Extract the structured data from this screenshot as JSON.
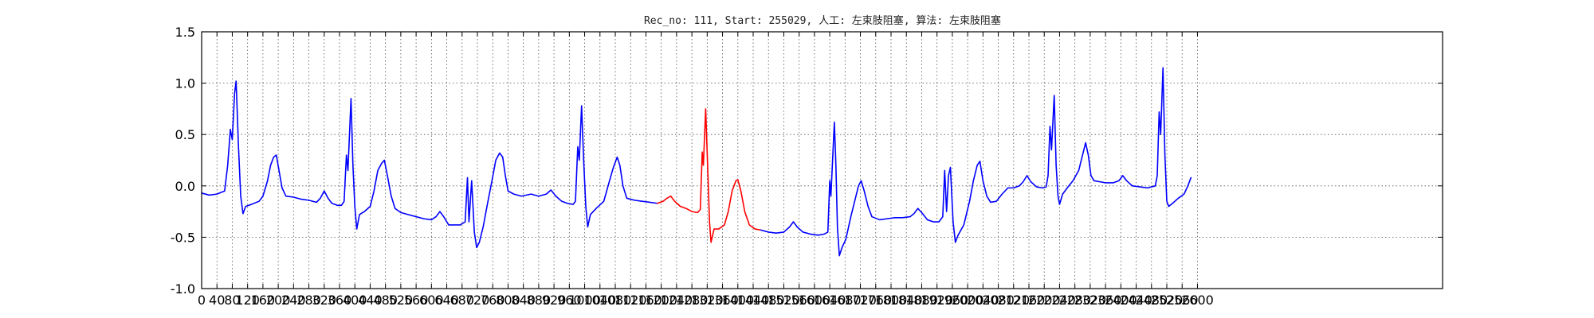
{
  "chart_data": {
    "type": "line",
    "title": "Rec_no: 111, Start: 255029, 人工: 左束肢阻塞, 算法: 左束肢阻塞",
    "xlabel": "",
    "ylabel": "",
    "xlim": [
      0,
      3240
    ],
    "ylim": [
      -1.0,
      1.5
    ],
    "grid": true,
    "y_ticks": [
      "-1.0",
      "-0.5",
      "0.0",
      "0.5",
      "1.0",
      "1.5"
    ],
    "x_ticks": [
      "0",
      "40",
      "80",
      "120",
      "160",
      "200",
      "240",
      "280",
      "320",
      "360",
      "400",
      "440",
      "480",
      "520",
      "560",
      "600",
      "640",
      "680",
      "720",
      "760",
      "800",
      "840",
      "880",
      "920",
      "960",
      "1000",
      "1040",
      "1080",
      "1120",
      "1160",
      "1200",
      "1240",
      "1280",
      "1320",
      "1360",
      "1400",
      "1440",
      "1480",
      "1520",
      "1560",
      "1600",
      "1640",
      "1680",
      "1720",
      "1760",
      "1800",
      "1840",
      "1880",
      "1920",
      "1960",
      "2000",
      "2040",
      "2080",
      "2120",
      "2160",
      "2200",
      "2240",
      "2280",
      "2320",
      "2360",
      "2400",
      "2440",
      "2480",
      "2520",
      "2560",
      "2600"
    ],
    "series": [
      {
        "color": "#0000ff",
        "points": [
          [
            0,
            -0.07
          ],
          [
            20,
            -0.09
          ],
          [
            40,
            -0.08
          ],
          [
            60,
            -0.05
          ],
          [
            68,
            0.2
          ],
          [
            75,
            0.55
          ],
          [
            80,
            0.45
          ],
          [
            86,
            0.9
          ],
          [
            90,
            1.02
          ],
          [
            96,
            0.4
          ],
          [
            102,
            -0.1
          ],
          [
            108,
            -0.27
          ],
          [
            115,
            -0.2
          ],
          [
            130,
            -0.18
          ],
          [
            150,
            -0.15
          ],
          [
            160,
            -0.1
          ],
          [
            172,
            0.05
          ],
          [
            180,
            0.2
          ],
          [
            188,
            0.28
          ],
          [
            195,
            0.3
          ],
          [
            202,
            0.15
          ],
          [
            210,
            -0.02
          ],
          [
            220,
            -0.1
          ],
          [
            240,
            -0.11
          ],
          [
            260,
            -0.13
          ],
          [
            280,
            -0.14
          ],
          [
            300,
            -0.16
          ],
          [
            310,
            -0.12
          ],
          [
            320,
            -0.05
          ],
          [
            330,
            -0.12
          ],
          [
            340,
            -0.17
          ],
          [
            355,
            -0.19
          ],
          [
            365,
            -0.19
          ],
          [
            372,
            -0.15
          ],
          [
            378,
            0.3
          ],
          [
            382,
            0.15
          ],
          [
            390,
            0.85
          ],
          [
            395,
            0.2
          ],
          [
            400,
            -0.2
          ],
          [
            405,
            -0.42
          ],
          [
            412,
            -0.28
          ],
          [
            425,
            -0.25
          ],
          [
            440,
            -0.2
          ],
          [
            450,
            -0.05
          ],
          [
            460,
            0.15
          ],
          [
            470,
            0.22
          ],
          [
            477,
            0.25
          ],
          [
            485,
            0.1
          ],
          [
            495,
            -0.1
          ],
          [
            505,
            -0.22
          ],
          [
            520,
            -0.26
          ],
          [
            540,
            -0.28
          ],
          [
            560,
            -0.3
          ],
          [
            580,
            -0.32
          ],
          [
            600,
            -0.33
          ],
          [
            612,
            -0.3
          ],
          [
            622,
            -0.25
          ],
          [
            632,
            -0.3
          ],
          [
            645,
            -0.38
          ],
          [
            660,
            -0.38
          ],
          [
            675,
            -0.38
          ],
          [
            688,
            -0.35
          ],
          [
            694,
            0.08
          ],
          [
            698,
            -0.35
          ],
          [
            705,
            0.05
          ],
          [
            712,
            -0.45
          ],
          [
            718,
            -0.6
          ],
          [
            725,
            -0.55
          ],
          [
            735,
            -0.4
          ],
          [
            745,
            -0.2
          ],
          [
            758,
            0.05
          ],
          [
            768,
            0.25
          ],
          [
            778,
            0.32
          ],
          [
            786,
            0.28
          ],
          [
            793,
            0.1
          ],
          [
            800,
            -0.05
          ],
          [
            815,
            -0.08
          ],
          [
            835,
            -0.1
          ],
          [
            860,
            -0.08
          ],
          [
            880,
            -0.1
          ],
          [
            900,
            -0.08
          ],
          [
            912,
            -0.04
          ],
          [
            925,
            -0.1
          ],
          [
            940,
            -0.15
          ],
          [
            955,
            -0.17
          ],
          [
            970,
            -0.18
          ],
          [
            976,
            -0.15
          ],
          [
            982,
            0.38
          ],
          [
            986,
            0.25
          ],
          [
            992,
            0.78
          ],
          [
            998,
            0.2
          ],
          [
            1003,
            -0.2
          ],
          [
            1008,
            -0.4
          ],
          [
            1015,
            -0.28
          ],
          [
            1030,
            -0.22
          ],
          [
            1050,
            -0.15
          ],
          [
            1065,
            0.05
          ],
          [
            1075,
            0.18
          ],
          [
            1085,
            0.28
          ],
          [
            1092,
            0.2
          ],
          [
            1100,
            0.0
          ],
          [
            1110,
            -0.12
          ],
          [
            1130,
            -0.14
          ],
          [
            1150,
            -0.15
          ],
          [
            1170,
            -0.16
          ],
          [
            1190,
            -0.17
          ]
        ]
      },
      {
        "color": "#ff0000",
        "points": [
          [
            1190,
            -0.17
          ],
          [
            1205,
            -0.15
          ],
          [
            1215,
            -0.12
          ],
          [
            1225,
            -0.1
          ],
          [
            1235,
            -0.15
          ],
          [
            1250,
            -0.2
          ],
          [
            1265,
            -0.22
          ],
          [
            1280,
            -0.25
          ],
          [
            1295,
            -0.26
          ],
          [
            1302,
            -0.23
          ],
          [
            1307,
            0.33
          ],
          [
            1310,
            0.2
          ],
          [
            1316,
            0.75
          ],
          [
            1322,
            0.1
          ],
          [
            1326,
            -0.35
          ],
          [
            1330,
            -0.55
          ],
          [
            1338,
            -0.42
          ],
          [
            1350,
            -0.42
          ],
          [
            1365,
            -0.38
          ],
          [
            1375,
            -0.25
          ],
          [
            1385,
            -0.05
          ],
          [
            1395,
            0.05
          ],
          [
            1400,
            0.06
          ],
          [
            1408,
            -0.05
          ],
          [
            1418,
            -0.25
          ],
          [
            1430,
            -0.38
          ],
          [
            1445,
            -0.42
          ],
          [
            1460,
            -0.43
          ]
        ]
      },
      {
        "color": "#0000ff",
        "points": [
          [
            1460,
            -0.43
          ],
          [
            1480,
            -0.45
          ],
          [
            1500,
            -0.46
          ],
          [
            1520,
            -0.45
          ],
          [
            1535,
            -0.4
          ],
          [
            1545,
            -0.35
          ],
          [
            1555,
            -0.4
          ],
          [
            1570,
            -0.45
          ],
          [
            1590,
            -0.47
          ],
          [
            1610,
            -0.48
          ],
          [
            1625,
            -0.47
          ],
          [
            1635,
            -0.45
          ],
          [
            1640,
            0.05
          ],
          [
            1643,
            -0.1
          ],
          [
            1652,
            0.62
          ],
          [
            1656,
            0.2
          ],
          [
            1660,
            -0.4
          ],
          [
            1665,
            -0.68
          ],
          [
            1672,
            -0.6
          ],
          [
            1682,
            -0.52
          ],
          [
            1695,
            -0.3
          ],
          [
            1705,
            -0.15
          ],
          [
            1715,
            0.0
          ],
          [
            1722,
            0.05
          ],
          [
            1730,
            -0.05
          ],
          [
            1740,
            -0.2
          ],
          [
            1750,
            -0.3
          ],
          [
            1770,
            -0.33
          ],
          [
            1790,
            -0.32
          ],
          [
            1810,
            -0.31
          ],
          [
            1830,
            -0.31
          ],
          [
            1850,
            -0.3
          ],
          [
            1860,
            -0.27
          ],
          [
            1870,
            -0.22
          ],
          [
            1880,
            -0.26
          ],
          [
            1895,
            -0.33
          ],
          [
            1910,
            -0.35
          ],
          [
            1925,
            -0.35
          ],
          [
            1935,
            -0.3
          ],
          [
            1940,
            0.15
          ],
          [
            1945,
            -0.25
          ],
          [
            1950,
            0.1
          ],
          [
            1955,
            0.18
          ],
          [
            1962,
            -0.35
          ],
          [
            1968,
            -0.55
          ],
          [
            1975,
            -0.48
          ],
          [
            1990,
            -0.38
          ],
          [
            2005,
            -0.15
          ],
          [
            2015,
            0.05
          ],
          [
            2025,
            0.2
          ],
          [
            2032,
            0.24
          ],
          [
            2040,
            0.05
          ],
          [
            2050,
            -0.1
          ],
          [
            2060,
            -0.16
          ],
          [
            2075,
            -0.15
          ],
          [
            2090,
            -0.08
          ],
          [
            2105,
            -0.02
          ],
          [
            2120,
            -0.02
          ],
          [
            2135,
            0.0
          ],
          [
            2145,
            0.04
          ],
          [
            2155,
            0.1
          ],
          [
            2165,
            0.04
          ],
          [
            2180,
            -0.01
          ],
          [
            2195,
            -0.02
          ],
          [
            2205,
            -0.01
          ],
          [
            2210,
            0.1
          ],
          [
            2215,
            0.58
          ],
          [
            2219,
            0.35
          ],
          [
            2226,
            0.88
          ],
          [
            2231,
            0.2
          ],
          [
            2236,
            -0.1
          ],
          [
            2240,
            -0.18
          ],
          [
            2248,
            -0.08
          ],
          [
            2260,
            -0.02
          ],
          [
            2275,
            0.05
          ],
          [
            2290,
            0.15
          ],
          [
            2300,
            0.3
          ],
          [
            2308,
            0.42
          ],
          [
            2315,
            0.3
          ],
          [
            2322,
            0.1
          ],
          [
            2330,
            0.05
          ],
          [
            2345,
            0.04
          ],
          [
            2360,
            0.03
          ],
          [
            2380,
            0.03
          ],
          [
            2395,
            0.05
          ],
          [
            2405,
            0.1
          ],
          [
            2415,
            0.05
          ],
          [
            2430,
            0.0
          ],
          [
            2450,
            -0.01
          ],
          [
            2470,
            -0.02
          ],
          [
            2490,
            0.0
          ],
          [
            2495,
            0.1
          ],
          [
            2500,
            0.72
          ],
          [
            2504,
            0.5
          ],
          [
            2510,
            1.15
          ],
          [
            2515,
            0.3
          ],
          [
            2520,
            -0.15
          ],
          [
            2525,
            -0.2
          ],
          [
            2535,
            -0.17
          ],
          [
            2550,
            -0.12
          ],
          [
            2565,
            -0.08
          ],
          [
            2575,
            0.0
          ],
          [
            2583,
            0.08
          ]
        ]
      }
    ]
  }
}
